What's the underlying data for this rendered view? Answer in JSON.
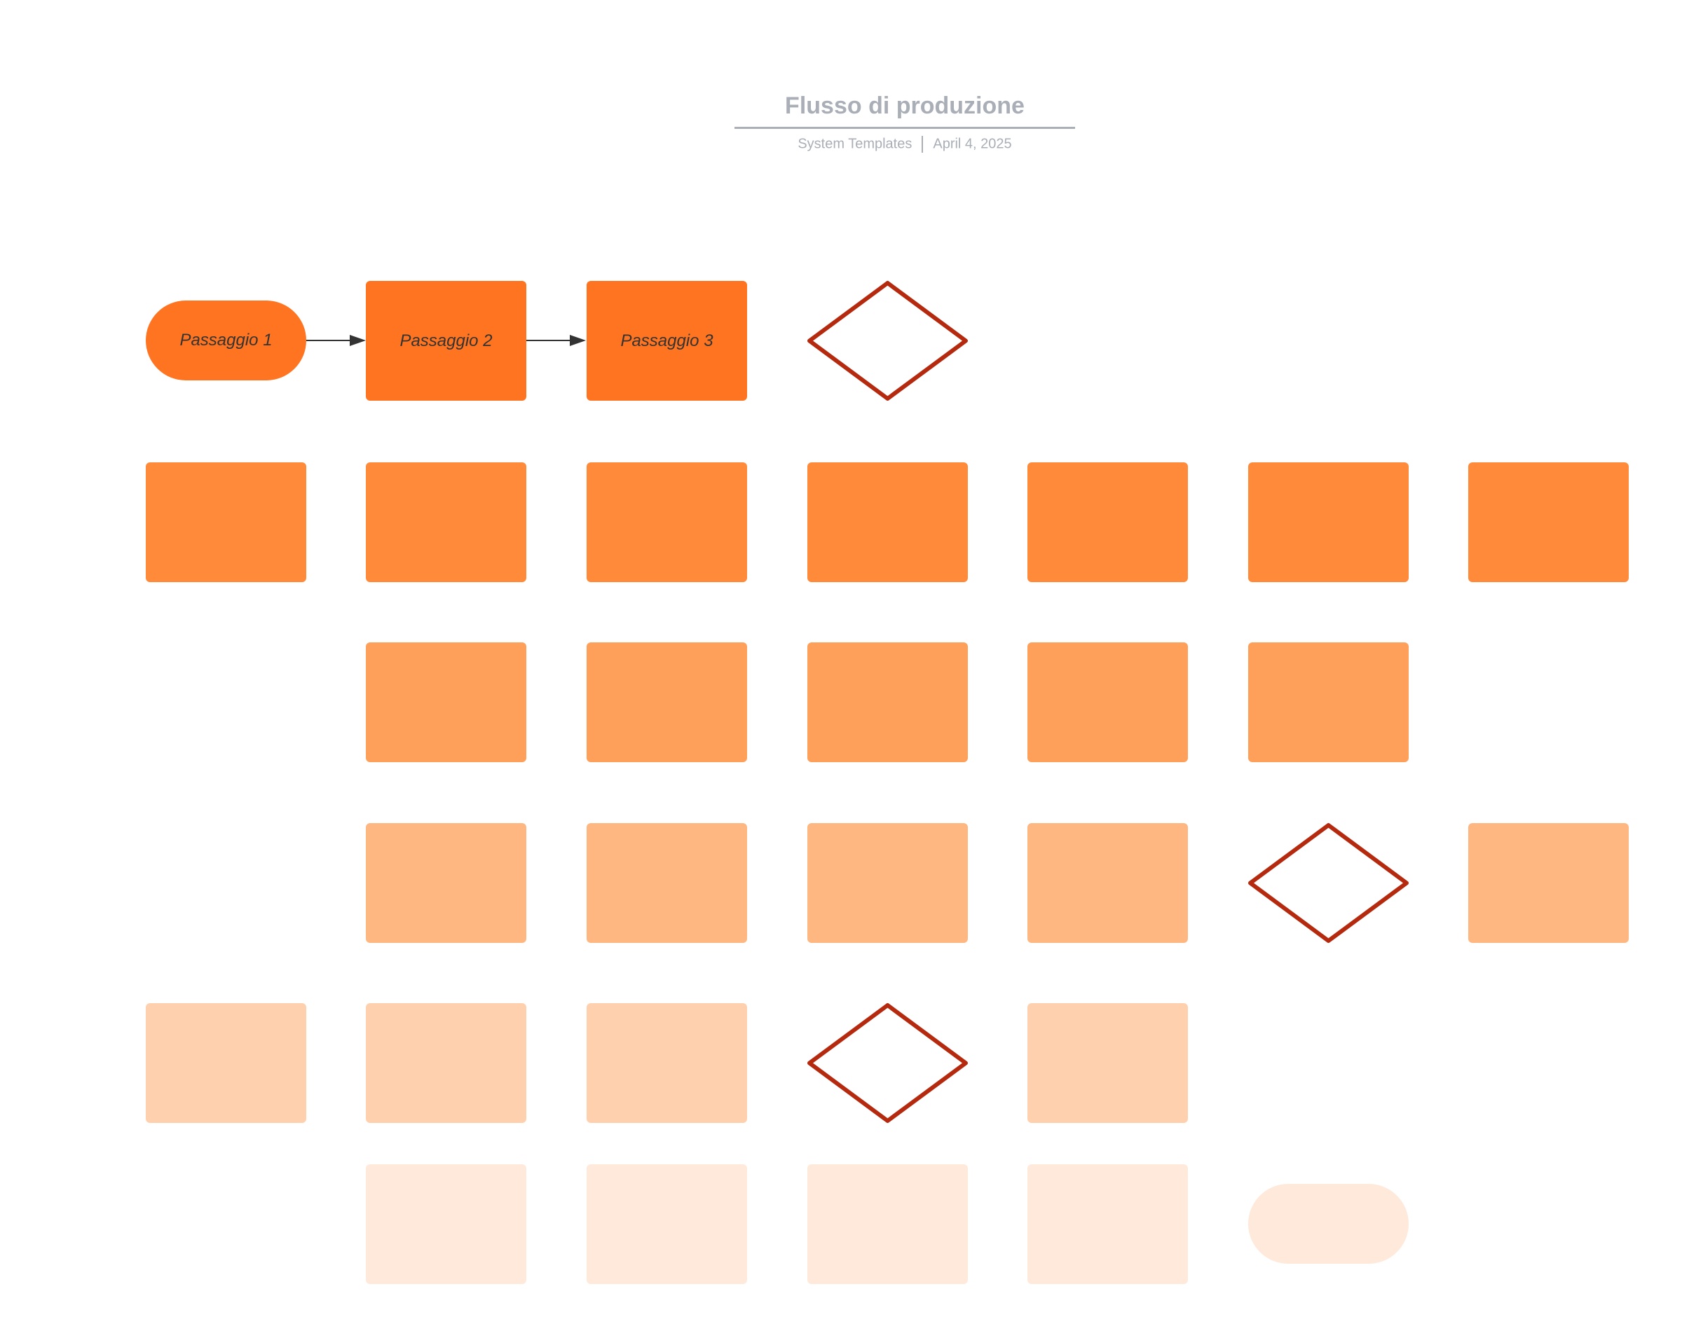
{
  "header": {
    "title": "Flusso di produzione",
    "author": "System Templates",
    "date": "April 4, 2025"
  },
  "diagram": {
    "steps": [
      {
        "label": "Passaggio 1",
        "shape": "terminator"
      },
      {
        "label": "Passaggio 2",
        "shape": "process"
      },
      {
        "label": "Passaggio 3",
        "shape": "process"
      }
    ],
    "colors": {
      "row1": "#ff7420",
      "row2": "#ff8a3a",
      "row3": "#ffa05a",
      "row4": "#ffb782",
      "row5": "#ffd0ae",
      "row6": "#ffe9db",
      "decision_stroke": "#b5290e",
      "connector": "#333333"
    }
  }
}
